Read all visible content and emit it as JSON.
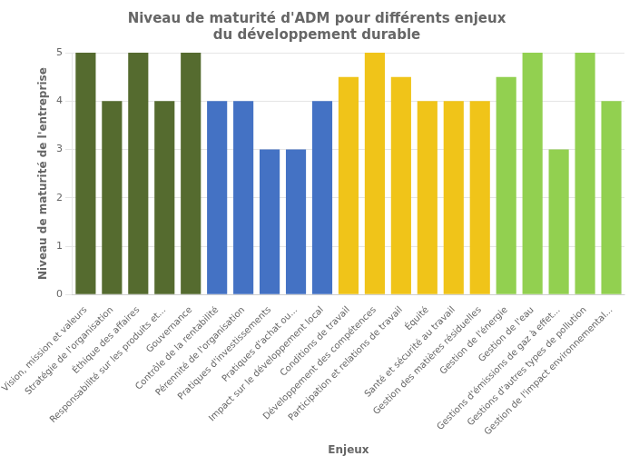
{
  "chart_data": {
    "type": "bar",
    "title": "Niveau de maturité d'ADM pour différents enjeux\ndu développement durable",
    "xlabel": "Enjeux",
    "ylabel": "Niveau de maturité de l'entreprise",
    "categories": [
      "Vision, mission et valeurs",
      "Stratégie de l'organisation",
      "Éthique des affaires",
      "Responsabilité sur les produits et...",
      "Gouvernance",
      "Contrôle de la rentabilité",
      "Pérennité de l'organisation",
      "Pratiques d'investissements",
      "Pratiques d'achat ou...",
      "Impact sur le développement local",
      "Conditions de travail",
      "Développement des compétences",
      "Participation et relations de travail",
      "Équité",
      "Santé et sécurité au travail",
      "Gestion des matières résiduelles",
      "Gestion de l'énergie",
      "Gestion de l'eau",
      "Gestions d'émissions de gaz à effet...",
      "Gestions d'autres types de pollution",
      "Gestion de l'impact environnemental..."
    ],
    "values": [
      5,
      4,
      5,
      4,
      5,
      4,
      4,
      3,
      3,
      4,
      4.5,
      5,
      4.5,
      4,
      4,
      4,
      4.5,
      5,
      3,
      5,
      4
    ],
    "colors": [
      "#556b2f",
      "#556b2f",
      "#556b2f",
      "#556b2f",
      "#556b2f",
      "#4472c4",
      "#4472c4",
      "#4472c4",
      "#4472c4",
      "#4472c4",
      "#f0c419",
      "#f0c419",
      "#f0c419",
      "#f0c419",
      "#f0c419",
      "#f0c419",
      "#92d050",
      "#92d050",
      "#92d050",
      "#92d050",
      "#92d050"
    ],
    "ylim": [
      0,
      5
    ],
    "yticks": [
      0,
      1,
      2,
      3,
      4,
      5
    ],
    "grid": true
  }
}
